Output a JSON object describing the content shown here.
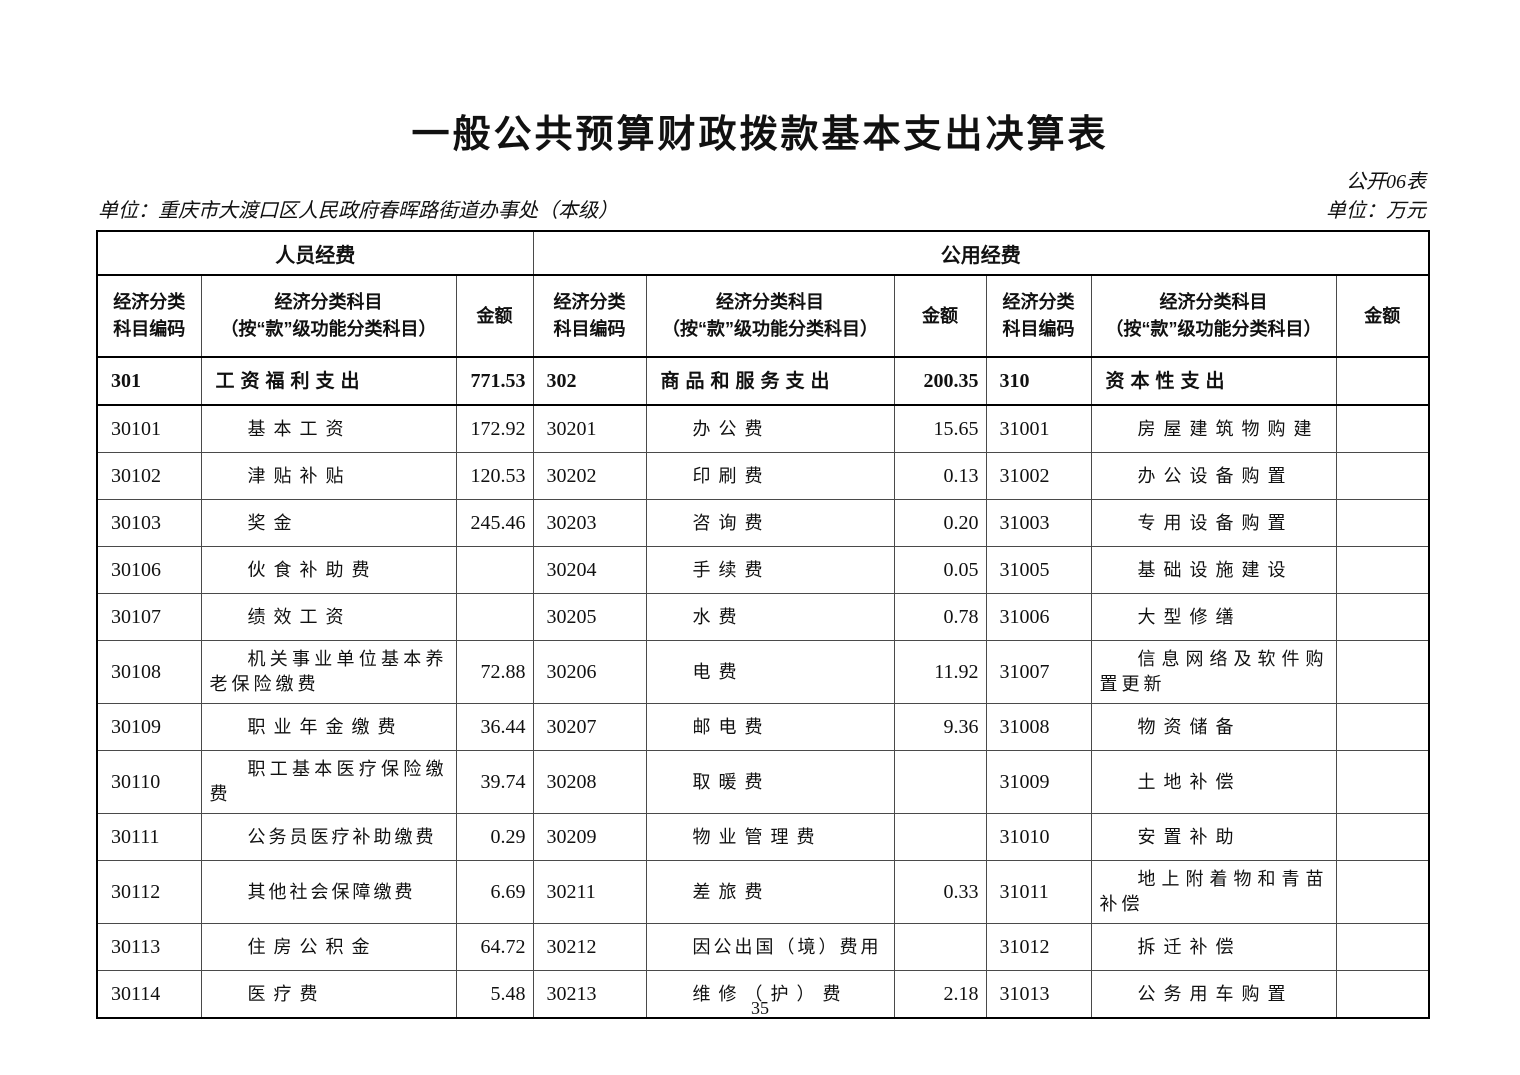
{
  "page": {
    "title": "一般公共预算财政拨款基本支出决算表",
    "form_code": "公开06表",
    "org_unit": "单位：重庆市大渡口区人民政府春晖路街道办事处（本级）",
    "money_unit": "单位：万元",
    "page_number": "35"
  },
  "table": {
    "group_headers": {
      "personnel": "人员经费",
      "public": "公用经费"
    },
    "columns": {
      "code_line1": "经济分类",
      "code_line2": "科目编码",
      "subject_line1": "经济分类科目",
      "subject_line2": "（按“款”级功能分类科目）",
      "amount": "金额"
    },
    "rows": [
      {
        "summary": true,
        "tall": false,
        "cells": [
          {
            "code": "301",
            "subject": "工资福利支出",
            "amount": "771.53"
          },
          {
            "code": "302",
            "subject": "商品和服务支出",
            "amount": "200.35"
          },
          {
            "code": "310",
            "subject": "资本性支出",
            "amount": ""
          }
        ]
      },
      {
        "summary": false,
        "tall": false,
        "cells": [
          {
            "code": "30101",
            "subject": "基本工资",
            "amount": "172.92"
          },
          {
            "code": "30201",
            "subject": "办公费",
            "amount": "15.65"
          },
          {
            "code": "31001",
            "subject": "房屋建筑物购建",
            "amount": ""
          }
        ]
      },
      {
        "summary": false,
        "tall": false,
        "cells": [
          {
            "code": "30102",
            "subject": "津贴补贴",
            "amount": "120.53"
          },
          {
            "code": "30202",
            "subject": "印刷费",
            "amount": "0.13"
          },
          {
            "code": "31002",
            "subject": "办公设备购置",
            "amount": ""
          }
        ]
      },
      {
        "summary": false,
        "tall": false,
        "cells": [
          {
            "code": "30103",
            "subject": "奖金",
            "amount": "245.46"
          },
          {
            "code": "30203",
            "subject": "咨询费",
            "amount": "0.20"
          },
          {
            "code": "31003",
            "subject": "专用设备购置",
            "amount": ""
          }
        ]
      },
      {
        "summary": false,
        "tall": false,
        "cells": [
          {
            "code": "30106",
            "subject": "伙食补助费",
            "amount": ""
          },
          {
            "code": "30204",
            "subject": "手续费",
            "amount": "0.05"
          },
          {
            "code": "31005",
            "subject": "基础设施建设",
            "amount": ""
          }
        ]
      },
      {
        "summary": false,
        "tall": false,
        "cells": [
          {
            "code": "30107",
            "subject": "绩效工资",
            "amount": ""
          },
          {
            "code": "30205",
            "subject": "水费",
            "amount": "0.78"
          },
          {
            "code": "31006",
            "subject": "大型修缮",
            "amount": ""
          }
        ]
      },
      {
        "summary": false,
        "tall": true,
        "cells": [
          {
            "code": "30108",
            "subject": "机关事业单位基本养老保险缴费",
            "amount": "72.88"
          },
          {
            "code": "30206",
            "subject": "电费",
            "amount": "11.92"
          },
          {
            "code": "31007",
            "subject": "信息网络及软件购置更新",
            "amount": ""
          }
        ]
      },
      {
        "summary": false,
        "tall": false,
        "cells": [
          {
            "code": "30109",
            "subject": "职业年金缴费",
            "amount": "36.44"
          },
          {
            "code": "30207",
            "subject": "邮电费",
            "amount": "9.36"
          },
          {
            "code": "31008",
            "subject": "物资储备",
            "amount": ""
          }
        ]
      },
      {
        "summary": false,
        "tall": true,
        "cells": [
          {
            "code": "30110",
            "subject": "职工基本医疗保险缴费",
            "amount": "39.74"
          },
          {
            "code": "30208",
            "subject": "取暖费",
            "amount": ""
          },
          {
            "code": "31009",
            "subject": "土地补偿",
            "amount": ""
          }
        ]
      },
      {
        "summary": false,
        "tall": false,
        "cells": [
          {
            "code": "30111",
            "subject": "公务员医疗补助缴费",
            "amount": "0.29"
          },
          {
            "code": "30209",
            "subject": "物业管理费",
            "amount": ""
          },
          {
            "code": "31010",
            "subject": "安置补助",
            "amount": ""
          }
        ]
      },
      {
        "summary": false,
        "tall": true,
        "cells": [
          {
            "code": "30112",
            "subject": "其他社会保障缴费",
            "amount": "6.69"
          },
          {
            "code": "30211",
            "subject": "差旅费",
            "amount": "0.33"
          },
          {
            "code": "31011",
            "subject": "地上附着物和青苗补偿",
            "amount": ""
          }
        ]
      },
      {
        "summary": false,
        "tall": false,
        "cells": [
          {
            "code": "30113",
            "subject": "住房公积金",
            "amount": "64.72"
          },
          {
            "code": "30212",
            "subject": "因公出国（境）费用",
            "amount": ""
          },
          {
            "code": "31012",
            "subject": "拆迁补偿",
            "amount": ""
          }
        ]
      },
      {
        "summary": false,
        "tall": false,
        "cells": [
          {
            "code": "30114",
            "subject": "医疗费",
            "amount": "5.48"
          },
          {
            "code": "30213",
            "subject": "维修（护）费",
            "amount": "2.18"
          },
          {
            "code": "31013",
            "subject": "公务用车购置",
            "amount": ""
          }
        ]
      }
    ]
  }
}
